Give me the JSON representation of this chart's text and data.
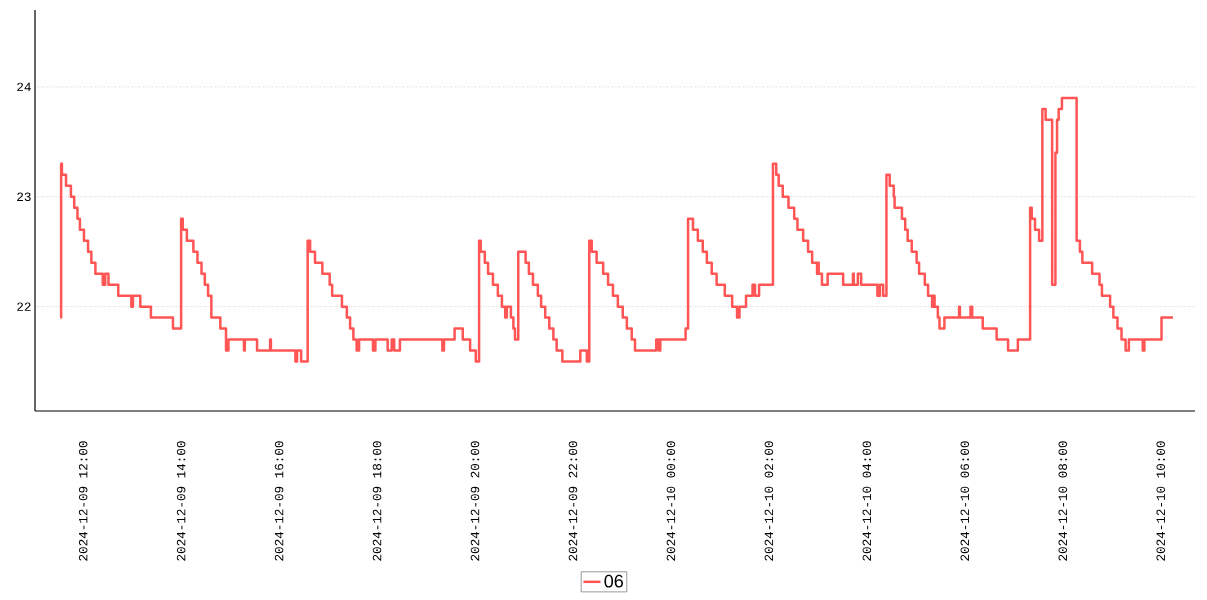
{
  "chart_data": {
    "type": "step",
    "x": [
      "2024-12-09T11:32",
      "2024-12-09T11:33",
      "2024-12-09T11:34",
      "2024-12-09T11:39",
      "2024-12-09T11:45",
      "2024-12-09T11:49",
      "2024-12-09T11:53",
      "2024-12-09T11:56",
      "2024-12-09T12:01",
      "2024-12-09T12:06",
      "2024-12-09T12:10",
      "2024-12-09T12:15",
      "2024-12-09T12:24",
      "2024-12-09T12:27",
      "2024-12-09T12:31",
      "2024-12-09T12:43",
      "2024-12-09T12:59",
      "2024-12-09T13:01",
      "2024-12-09T13:10",
      "2024-12-09T13:23",
      "2024-12-09T13:50",
      "2024-12-09T14:00",
      "2024-12-09T14:02",
      "2024-12-09T14:07",
      "2024-12-09T14:15",
      "2024-12-09T14:20",
      "2024-12-09T14:25",
      "2024-12-09T14:29",
      "2024-12-09T14:33",
      "2024-12-09T14:37",
      "2024-12-09T14:48",
      "2024-12-09T14:55",
      "2024-12-09T14:58",
      "2024-12-09T15:17",
      "2024-12-09T15:18",
      "2024-12-09T15:33",
      "2024-12-09T15:49",
      "2024-12-09T15:50",
      "2024-12-09T16:20",
      "2024-12-09T16:22",
      "2024-12-09T16:27",
      "2024-12-09T16:35",
      "2024-12-09T16:38",
      "2024-12-09T16:44",
      "2024-12-09T16:53",
      "2024-12-09T17:02",
      "2024-12-09T17:05",
      "2024-12-09T17:17",
      "2024-12-09T17:23",
      "2024-12-09T17:27",
      "2024-12-09T17:31",
      "2024-12-09T17:35",
      "2024-12-09T17:38",
      "2024-12-09T17:55",
      "2024-12-09T17:58",
      "2024-12-09T18:13",
      "2024-12-09T18:18",
      "2024-12-09T18:21",
      "2024-12-09T18:28",
      "2024-12-09T19:20",
      "2024-12-09T19:22",
      "2024-12-09T19:35",
      "2024-12-09T19:45",
      "2024-12-09T19:54",
      "2024-12-09T20:01",
      "2024-12-09T20:05",
      "2024-12-09T20:07",
      "2024-12-09T20:12",
      "2024-12-09T20:16",
      "2024-12-09T20:22",
      "2024-12-09T20:28",
      "2024-12-09T20:33",
      "2024-12-09T20:37",
      "2024-12-09T20:39",
      "2024-12-09T20:44",
      "2024-12-09T20:47",
      "2024-12-09T20:49",
      "2024-12-09T20:53",
      "2024-12-09T21:02",
      "2024-12-09T21:06",
      "2024-12-09T21:11",
      "2024-12-09T21:17",
      "2024-12-09T21:21",
      "2024-12-09T21:26",
      "2024-12-09T21:31",
      "2024-12-09T21:36",
      "2024-12-09T21:40",
      "2024-12-09T21:47",
      "2024-12-09T22:09",
      "2024-12-09T22:17",
      "2024-12-09T22:20",
      "2024-12-09T22:23",
      "2024-12-09T22:29",
      "2024-12-09T22:37",
      "2024-12-09T22:43",
      "2024-12-09T22:49",
      "2024-12-09T22:55",
      "2024-12-09T23:01",
      "2024-12-09T23:06",
      "2024-12-09T23:12",
      "2024-12-09T23:16",
      "2024-12-09T23:42",
      "2024-12-09T23:45",
      "2024-12-09T23:47",
      "2024-12-10T00:18",
      "2024-12-10T00:21",
      "2024-12-10T00:27",
      "2024-12-10T00:33",
      "2024-12-10T00:39",
      "2024-12-10T00:44",
      "2024-12-10T00:50",
      "2024-12-10T00:56",
      "2024-12-10T01:06",
      "2024-12-10T01:15",
      "2024-12-10T01:21",
      "2024-12-10T01:24",
      "2024-12-10T01:32",
      "2024-12-10T01:40",
      "2024-12-10T01:43",
      "2024-12-10T01:48",
      "2024-12-10T02:05",
      "2024-12-10T02:09",
      "2024-12-10T02:12",
      "2024-12-10T02:17",
      "2024-12-10T02:24",
      "2024-12-10T02:31",
      "2024-12-10T02:35",
      "2024-12-10T02:42",
      "2024-12-10T02:48",
      "2024-12-10T02:53",
      "2024-12-10T02:59",
      "2024-12-10T03:00",
      "2024-12-10T03:01",
      "2024-12-10T03:05",
      "2024-12-10T03:12",
      "2024-12-10T03:31",
      "2024-12-10T03:43",
      "2024-12-10T03:44",
      "2024-12-10T03:49",
      "2024-12-10T03:53",
      "2024-12-10T04:13",
      "2024-12-10T04:16",
      "2024-12-10T04:20",
      "2024-12-10T04:24",
      "2024-12-10T04:28",
      "2024-12-10T04:33",
      "2024-12-10T04:34",
      "2024-12-10T04:43",
      "2024-12-10T04:47",
      "2024-12-10T04:50",
      "2024-12-10T04:55",
      "2024-12-10T05:01",
      "2024-12-10T05:04",
      "2024-12-10T05:11",
      "2024-12-10T05:15",
      "2024-12-10T05:20",
      "2024-12-10T05:21",
      "2024-12-10T05:23",
      "2024-12-10T05:27",
      "2024-12-10T05:29",
      "2024-12-10T05:35",
      "2024-12-10T05:53",
      "2024-12-10T05:54",
      "2024-12-10T06:07",
      "2024-12-10T06:09",
      "2024-12-10T06:22",
      "2024-12-10T06:39",
      "2024-12-10T06:53",
      "2024-12-10T07:05",
      "2024-12-10T07:20",
      "2024-12-10T07:22",
      "2024-12-10T07:26",
      "2024-12-10T07:31",
      "2024-12-10T07:35",
      "2024-12-10T07:39",
      "2024-12-10T07:47",
      "2024-12-10T07:51",
      "2024-12-10T07:53",
      "2024-12-10T07:55",
      "2024-12-10T07:59",
      "2024-12-10T08:17",
      "2024-12-10T08:21",
      "2024-12-10T08:24",
      "2024-12-10T08:36",
      "2024-12-10T08:45",
      "2024-12-10T08:48",
      "2024-12-10T08:58",
      "2024-12-10T09:02",
      "2024-12-10T09:07",
      "2024-12-10T09:12",
      "2024-12-10T09:17",
      "2024-12-10T09:21",
      "2024-12-10T09:38",
      "2024-12-10T09:40",
      "2024-12-10T10:01",
      "2024-12-10T10:15"
    ],
    "series": [
      {
        "name": "06",
        "color": "#ff5555",
        "values": [
          21.9,
          23.3,
          23.2,
          23.1,
          23.0,
          22.9,
          22.8,
          22.7,
          22.6,
          22.5,
          22.4,
          22.3,
          22.2,
          22.3,
          22.2,
          22.1,
          22.0,
          22.1,
          22.0,
          21.9,
          21.8,
          22.8,
          22.7,
          22.6,
          22.5,
          22.4,
          22.3,
          22.2,
          22.1,
          21.9,
          21.8,
          21.6,
          21.7,
          21.6,
          21.7,
          21.6,
          21.7,
          21.6,
          21.5,
          21.6,
          21.5,
          22.6,
          22.5,
          22.4,
          22.3,
          22.2,
          22.1,
          22.0,
          21.9,
          21.8,
          21.7,
          21.6,
          21.7,
          21.6,
          21.7,
          21.6,
          21.7,
          21.6,
          21.7,
          21.6,
          21.7,
          21.8,
          21.7,
          21.6,
          21.5,
          22.6,
          22.5,
          22.4,
          22.3,
          22.2,
          22.1,
          22.0,
          21.9,
          22.0,
          21.9,
          21.8,
          21.7,
          22.5,
          22.4,
          22.3,
          22.2,
          22.1,
          22.0,
          21.9,
          21.8,
          21.7,
          21.6,
          21.5,
          21.6,
          21.5,
          22.6,
          22.5,
          22.4,
          22.3,
          22.2,
          22.1,
          22.0,
          21.9,
          21.8,
          21.7,
          21.6,
          21.7,
          21.6,
          21.7,
          21.8,
          22.8,
          22.7,
          22.6,
          22.5,
          22.4,
          22.3,
          22.2,
          22.1,
          22.0,
          21.9,
          22.0,
          22.1,
          22.2,
          22.1,
          22.2,
          23.3,
          23.2,
          23.1,
          23.0,
          22.9,
          22.8,
          22.7,
          22.6,
          22.5,
          22.4,
          22.3,
          22.4,
          22.3,
          22.2,
          22.3,
          22.2,
          22.3,
          22.2,
          22.3,
          22.2,
          22.1,
          22.2,
          22.1,
          23.2,
          23.1,
          23.0,
          22.9,
          22.8,
          22.7,
          22.6,
          22.5,
          22.4,
          22.3,
          22.2,
          22.1,
          22.0,
          22.1,
          22.0,
          21.9,
          21.8,
          21.9,
          22.0,
          21.9,
          22.0,
          21.9,
          21.8,
          21.7,
          21.6,
          21.7,
          22.9,
          22.8,
          22.7,
          22.6,
          23.8,
          23.7,
          22.2,
          23.4,
          23.7,
          23.8,
          23.9,
          22.6,
          22.5,
          22.4,
          22.3,
          22.2,
          22.1,
          22.0,
          21.9,
          21.8,
          21.7,
          21.6,
          21.7,
          21.6,
          21.7,
          21.9,
          21.9
        ]
      }
    ],
    "xlim": [
      "2024-12-09T11:01",
      "2024-12-10T10:42"
    ],
    "xticks": [
      {
        "value": "2024-12-09T12:00",
        "label": "2024-12-09 12:00"
      },
      {
        "value": "2024-12-09T14:00",
        "label": "2024-12-09 14:00"
      },
      {
        "value": "2024-12-09T16:00",
        "label": "2024-12-09 16:00"
      },
      {
        "value": "2024-12-09T18:00",
        "label": "2024-12-09 18:00"
      },
      {
        "value": "2024-12-09T20:00",
        "label": "2024-12-09 20:00"
      },
      {
        "value": "2024-12-09T22:00",
        "label": "2024-12-09 22:00"
      },
      {
        "value": "2024-12-10T00:00",
        "label": "2024-12-10 00:00"
      },
      {
        "value": "2024-12-10T02:00",
        "label": "2024-12-10 02:00"
      },
      {
        "value": "2024-12-10T04:00",
        "label": "2024-12-10 04:00"
      },
      {
        "value": "2024-12-10T06:00",
        "label": "2024-12-10 06:00"
      },
      {
        "value": "2024-12-10T08:00",
        "label": "2024-12-10 08:00"
      },
      {
        "value": "2024-12-10T10:00",
        "label": "2024-12-10 10:00"
      }
    ],
    "ylim": [
      21.05,
      24.7
    ],
    "yticks": [
      22,
      23,
      24
    ],
    "grid": "y",
    "legend": "bottom"
  }
}
